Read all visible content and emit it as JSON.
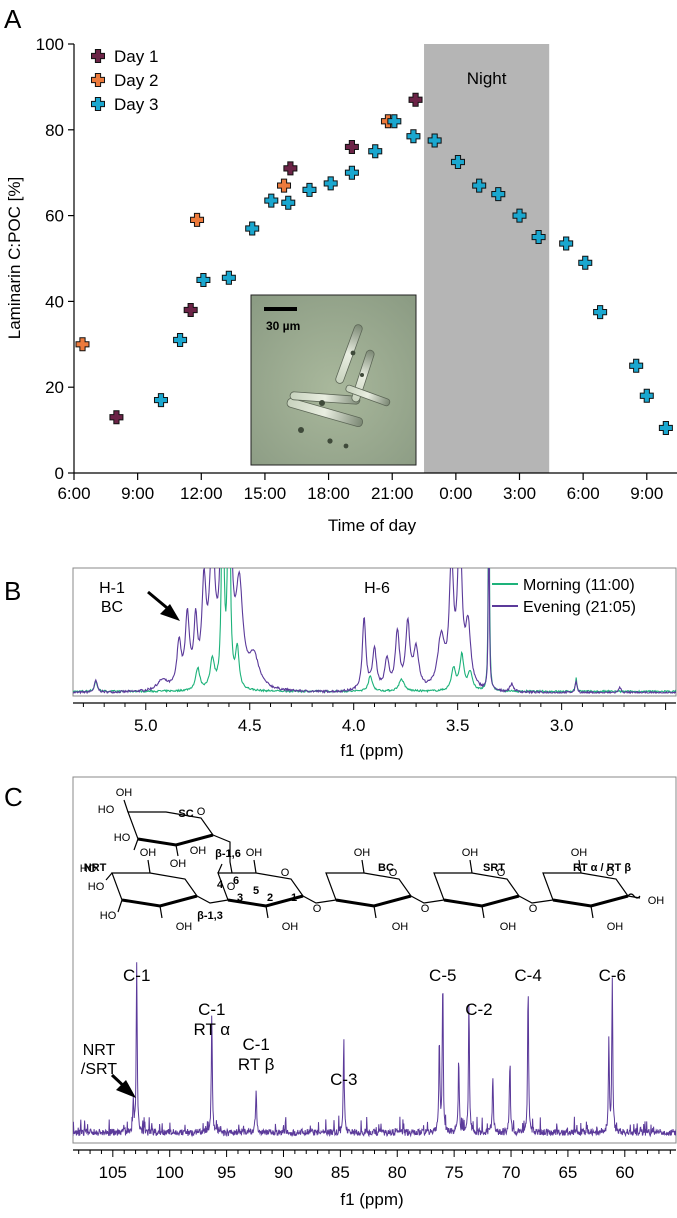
{
  "chart_data": [
    {
      "type": "scatter",
      "panel_label": "A",
      "xlabel": "Time of day",
      "ylabel": "Laminarin C:POC [%]",
      "x_ticks": [
        "6:00",
        "9:00",
        "12:00",
        "15:00",
        "18:00",
        "21:00",
        "0:00",
        "3:00",
        "6:00",
        "9:00"
      ],
      "y_ticks": [
        "0",
        "20",
        "40",
        "60",
        "80",
        "100"
      ],
      "ylim": [
        0,
        100
      ],
      "xlim_hours": [
        6,
        34
      ],
      "night_label": "Night",
      "night_range_hours": [
        22.5,
        28.4
      ],
      "inset_scale_label": "30 µm",
      "series": [
        {
          "name": "Day 1",
          "color": "#6b2346",
          "points": [
            [
              8.0,
              13
            ],
            [
              11.5,
              38
            ],
            [
              16.2,
              71
            ],
            [
              19.1,
              76
            ],
            [
              22.1,
              87
            ]
          ]
        },
        {
          "name": "Day 2",
          "color": "#ec7a3c",
          "points": [
            [
              6.4,
              30
            ],
            [
              11.8,
              59
            ],
            [
              15.9,
              67
            ],
            [
              20.8,
              82
            ]
          ]
        },
        {
          "name": "Day 3",
          "color": "#1aa7cf",
          "points": [
            [
              10.1,
              17
            ],
            [
              11.0,
              31
            ],
            [
              12.1,
              45
            ],
            [
              13.3,
              45.5
            ],
            [
              14.4,
              57
            ],
            [
              15.3,
              63.5
            ],
            [
              16.1,
              63
            ],
            [
              17.1,
              66
            ],
            [
              18.1,
              67.5
            ],
            [
              19.1,
              70
            ],
            [
              20.2,
              75
            ],
            [
              21.1,
              82
            ],
            [
              22.0,
              78.5
            ],
            [
              23.0,
              77.5
            ],
            [
              24.1,
              72.5
            ],
            [
              25.1,
              67
            ],
            [
              26.0,
              65
            ],
            [
              27.0,
              60
            ],
            [
              27.9,
              55
            ],
            [
              29.2,
              53.5
            ],
            [
              30.1,
              49
            ],
            [
              30.8,
              37.5
            ],
            [
              32.5,
              25
            ],
            [
              33.0,
              18
            ],
            [
              33.9,
              10.5
            ]
          ]
        }
      ]
    },
    {
      "type": "line",
      "panel_label": "B",
      "xlabel": "f1 (ppm)",
      "x_ticks": [
        "5.0",
        "4.5",
        "4.0",
        "3.5",
        "3.0"
      ],
      "xlim": [
        5.35,
        2.45
      ],
      "annotations": {
        "h1": "H-1",
        "bc": "BC",
        "h6": "H-6"
      },
      "series": [
        {
          "name": "Morning (11:00)",
          "color": "#1db27a"
        },
        {
          "name": "Evening (21:05)",
          "color": "#5b3a9a"
        }
      ]
    },
    {
      "type": "line",
      "panel_label": "C",
      "xlabel": "f1 (ppm)",
      "x_ticks": [
        "105",
        "100",
        "95",
        "90",
        "85",
        "80",
        "75",
        "70",
        "65",
        "60"
      ],
      "xlim": [
        108.5,
        55.5
      ],
      "color": "#5b3a9a",
      "structure_labels": {
        "sc": "SC",
        "nrt": "NRT",
        "bc": "BC",
        "srt": "SRT",
        "rt": "RT α / RT β",
        "b16": "β-1,6",
        "b13": "β-1,3",
        "n1": "1",
        "n2": "2",
        "n3": "3",
        "n4": "4",
        "n5": "5",
        "n6": "6",
        "oh": "OH",
        "ho": "HO",
        "o": "O"
      },
      "peak_labels": [
        {
          "text": "C-1",
          "ppm": 102.9
        },
        {
          "text": "C-1",
          "ppm": 96.3
        },
        {
          "text": "RT α",
          "ppm": 96.3
        },
        {
          "text": "C-1",
          "ppm": 92.4
        },
        {
          "text": "RT β",
          "ppm": 92.4
        },
        {
          "text": "C-3",
          "ppm": 84.7
        },
        {
          "text": "C-5",
          "ppm": 76.0
        },
        {
          "text": "C-2",
          "ppm": 73.7
        },
        {
          "text": "C-4",
          "ppm": 68.5
        },
        {
          "text": "C-6",
          "ppm": 61.1
        }
      ],
      "nrt_label_1": "NRT",
      "nrt_label_2": "/SRT"
    }
  ]
}
